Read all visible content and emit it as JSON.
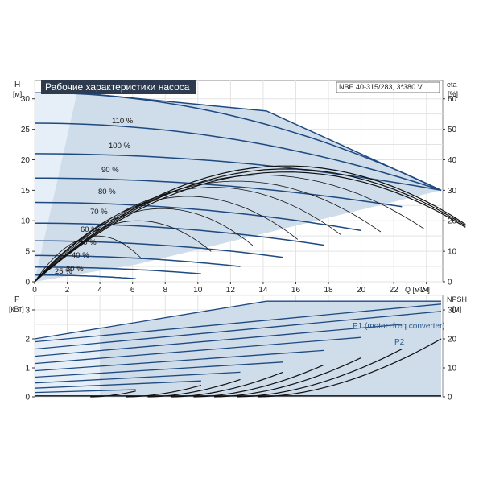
{
  "chart_data": [
    {
      "type": "line",
      "title": "Рабочие характеристики насоса",
      "model": "NBE 40-315/283, 3*380 V",
      "xlabel": "Q [м³/ч]",
      "ylabel": "H",
      "ylabel_unit": "[м]",
      "y2label": "eta",
      "y2label_unit": "[%]",
      "xlim": [
        0,
        25
      ],
      "xticks": [
        "0",
        "2",
        "4",
        "6",
        "8",
        "10",
        "12",
        "14",
        "16",
        "18",
        "20",
        "22",
        "24"
      ],
      "ylim": [
        0,
        33
      ],
      "yticks": [
        "0",
        "5",
        "10",
        "15",
        "20",
        "25",
        "30"
      ],
      "y2lim": [
        0,
        66
      ],
      "y2ticks": [
        "0",
        "10",
        "20",
        "30",
        "40",
        "50",
        "60"
      ],
      "grid": true,
      "colors": {
        "head": "#1e4a80",
        "eta": "#111111",
        "fill": "#cfdcea",
        "fill_light": "#e6eff8"
      },
      "operating_area": [
        [
          0,
          31
        ],
        [
          2.6,
          31
        ],
        [
          14.2,
          28
        ],
        [
          24.9,
          15
        ],
        [
          6.2,
          2.8
        ],
        [
          0,
          0
        ]
      ],
      "speed_labels": [
        "110 %",
        "100 %",
        "90 %",
        "80 %",
        "70 %",
        "60 %",
        "50 %",
        "40 %",
        "30 %",
        "25 %"
      ],
      "speed_curves": [
        {
          "shutoff": 31.0,
          "qmax": 24.9,
          "hend": 15.0,
          "label": "110 %"
        },
        {
          "shutoff": 26.0,
          "qmax": 24.9,
          "hend": 15.0,
          "label": "100 %"
        },
        {
          "shutoff": 21.0,
          "qmax": 24.9,
          "hend": 15.0,
          "label": "90 %"
        },
        {
          "shutoff": 17.0,
          "qmax": 22.5,
          "hend": 12.3,
          "label": "80 %"
        },
        {
          "shutoff": 13.0,
          "qmax": 20.0,
          "hend": 8.4,
          "label": "70 %"
        },
        {
          "shutoff": 9.6,
          "qmax": 17.7,
          "hend": 6.0,
          "label": "60 %"
        },
        {
          "shutoff": 6.7,
          "qmax": 15.2,
          "hend": 4.0,
          "label": "50 %"
        },
        {
          "shutoff": 4.3,
          "qmax": 12.6,
          "hend": 2.5,
          "label": "40 %"
        },
        {
          "shutoff": 2.4,
          "qmax": 10.2,
          "hend": 1.3,
          "label": "30 %"
        },
        {
          "shutoff": 1.1,
          "qmax": 6.2,
          "hend": 0.5,
          "label": "25 %"
        }
      ]
    },
    {
      "type": "line",
      "ylabel": "P",
      "ylabel_unit": "[кВт]",
      "y2label": "NPSH",
      "y2label_unit": "[м]",
      "xlim": [
        0,
        25
      ],
      "ylim": [
        0,
        3.5
      ],
      "yticks": [
        "0",
        "1",
        "2",
        "3"
      ],
      "y2lim": [
        0,
        35
      ],
      "y2ticks": [
        "0",
        "10",
        "20",
        "30"
      ],
      "grid": true,
      "series_labels": [
        "P1 (motor+freq.converter)",
        "P2"
      ],
      "power_area": [
        [
          0,
          2.0
        ],
        [
          14.2,
          3.3
        ],
        [
          24.9,
          3.3
        ],
        [
          24.9,
          0
        ],
        [
          0,
          0
        ]
      ],
      "power_lines": [
        {
          "p0": 1.9,
          "qmax": 24.9,
          "pend": 3.2
        },
        {
          "p0": 1.65,
          "qmax": 24.9,
          "pend": 2.95
        },
        {
          "p0": 1.4,
          "qmax": 22.5,
          "pend": 2.5
        },
        {
          "p0": 1.15,
          "qmax": 20.0,
          "pend": 2.05
        },
        {
          "p0": 0.9,
          "qmax": 17.7,
          "pend": 1.6
        },
        {
          "p0": 0.68,
          "qmax": 15.2,
          "pend": 1.2
        },
        {
          "p0": 0.48,
          "qmax": 12.6,
          "pend": 0.85
        },
        {
          "p0": 0.3,
          "qmax": 10.2,
          "pend": 0.55
        },
        {
          "p0": 0.15,
          "qmax": 6.2,
          "pend": 0.25
        }
      ],
      "npsh_curves": [
        {
          "qend": 24.9,
          "nend": 20.0
        },
        {
          "qend": 22.5,
          "nend": 16.5
        },
        {
          "qend": 20.0,
          "nend": 13.5
        },
        {
          "qend": 17.7,
          "nend": 11.0
        },
        {
          "qend": 15.2,
          "nend": 8.5
        },
        {
          "qend": 12.6,
          "nend": 6.0
        },
        {
          "qend": 10.2,
          "nend": 4.0
        },
        {
          "qend": 6.2,
          "nend": 2.0
        }
      ]
    }
  ]
}
